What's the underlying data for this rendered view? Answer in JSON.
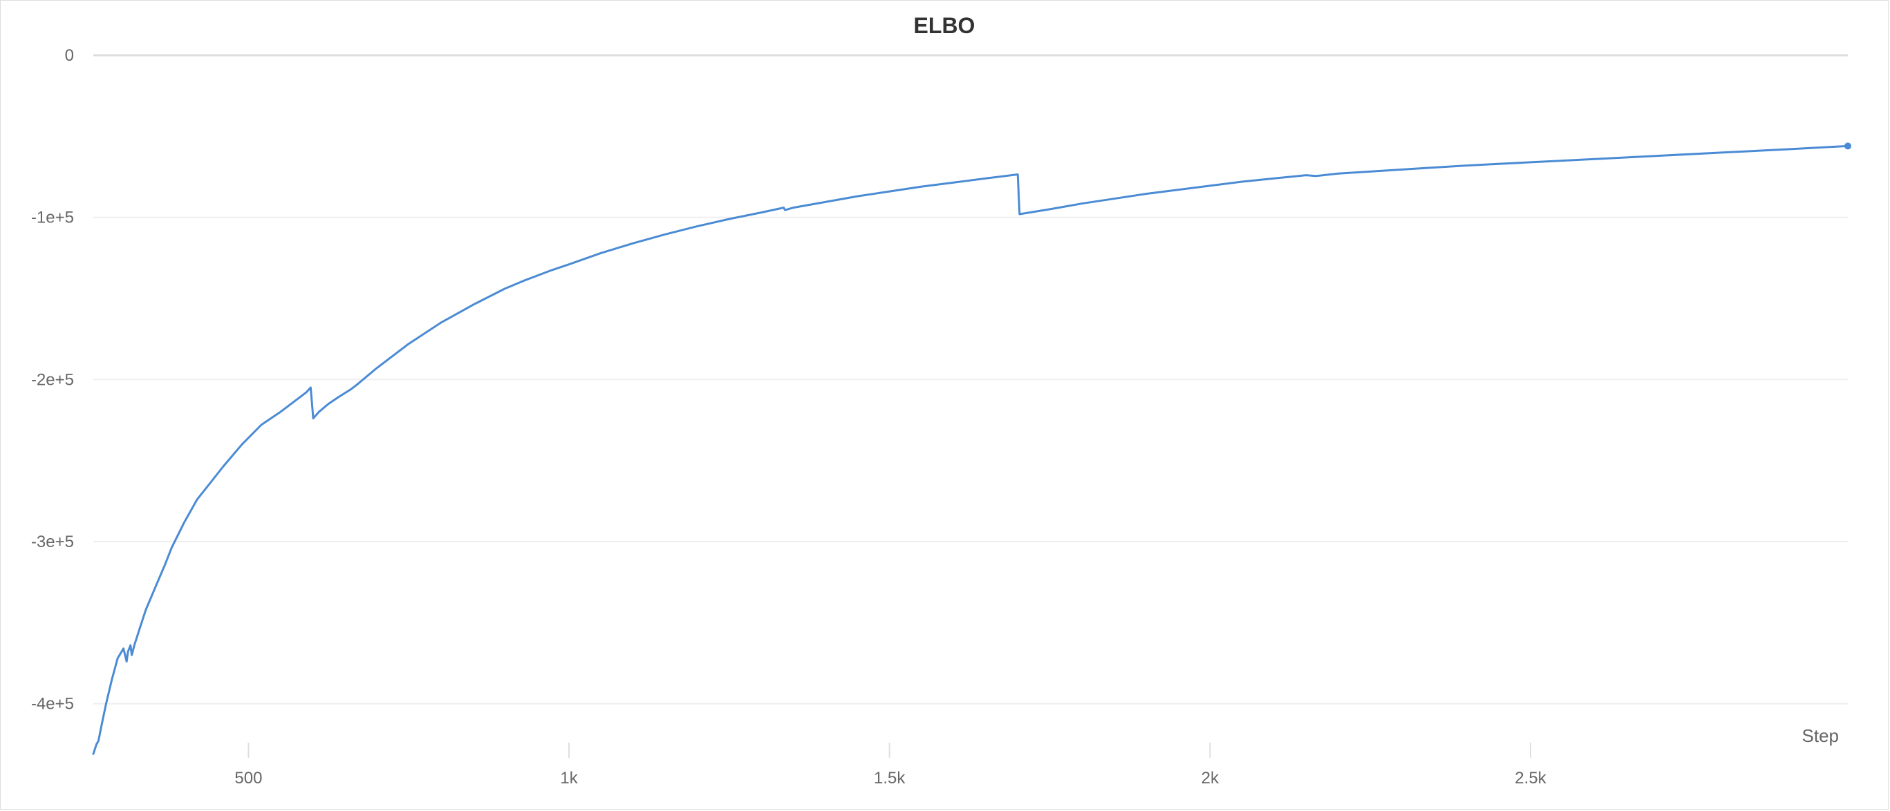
{
  "chart_data": {
    "type": "line",
    "title": "ELBO",
    "xlabel": "Step",
    "ylabel": "",
    "xlim": [
      258,
      2995
    ],
    "ylim": [
      -430000.0,
      0
    ],
    "grid": true,
    "legend": "none",
    "x_ticks": [
      {
        "value": 500,
        "label": "500"
      },
      {
        "value": 1000,
        "label": "1k"
      },
      {
        "value": 1500,
        "label": "1.5k"
      },
      {
        "value": 2000,
        "label": "2k"
      },
      {
        "value": 2500,
        "label": "2.5k"
      }
    ],
    "y_ticks": [
      {
        "value": 0,
        "label": "0"
      },
      {
        "value": -100000,
        "label": "-1e+5"
      },
      {
        "value": -200000,
        "label": "-2e+5"
      },
      {
        "value": -300000,
        "label": "-3e+5"
      },
      {
        "value": -400000,
        "label": "-4e+5"
      }
    ],
    "series": [
      {
        "color": "#4a8bd4",
        "x": [
          258,
          263,
          266,
          270,
          278,
          287,
          296,
          305,
          310,
          312,
          316,
          318,
          320,
          322,
          330,
          340,
          355,
          370,
          380,
          400,
          420,
          440,
          460,
          490,
          520,
          550,
          570,
          590,
          597,
          601,
          610,
          625,
          640,
          660,
          670,
          700,
          750,
          800,
          850,
          900,
          930,
          970,
          1000,
          1050,
          1100,
          1150,
          1200,
          1250,
          1300,
          1335,
          1337,
          1350,
          1400,
          1450,
          1500,
          1550,
          1600,
          1650,
          1700,
          1703,
          1750,
          1800,
          1850,
          1900,
          1950,
          2000,
          2050,
          2100,
          2150,
          2165,
          2200,
          2300,
          2400,
          2500,
          2600,
          2700,
          2800,
          2900,
          2995
        ],
        "y": [
          -431000,
          -425000,
          -423000,
          -415000,
          -400000,
          -385000,
          -372000,
          -366000,
          -374000,
          -368000,
          -364000,
          -370000,
          -367000,
          -364000,
          -354000,
          -342000,
          -328000,
          -314000,
          -304000,
          -288000,
          -274000,
          -264000,
          -254000,
          -240000,
          -228000,
          -220000,
          -214000,
          -208000,
          -205000,
          -224000,
          -220000,
          -215000,
          -211000,
          -206000,
          -203000,
          -193000,
          -178000,
          -165000,
          -154000,
          -144000,
          -139000,
          -133000,
          -129000,
          -122000,
          -116000,
          -110500,
          -105500,
          -101000,
          -97000,
          -94000,
          -95500,
          -94000,
          -90500,
          -87000,
          -84000,
          -81000,
          -78500,
          -76000,
          -73500,
          -98000,
          -95000,
          -91500,
          -88500,
          -85500,
          -83000,
          -80500,
          -78000,
          -76000,
          -74000,
          -74500,
          -73000,
          -70500,
          -68000,
          -66000,
          -64000,
          -62000,
          -60000,
          -58000,
          -56000
        ]
      }
    ]
  }
}
